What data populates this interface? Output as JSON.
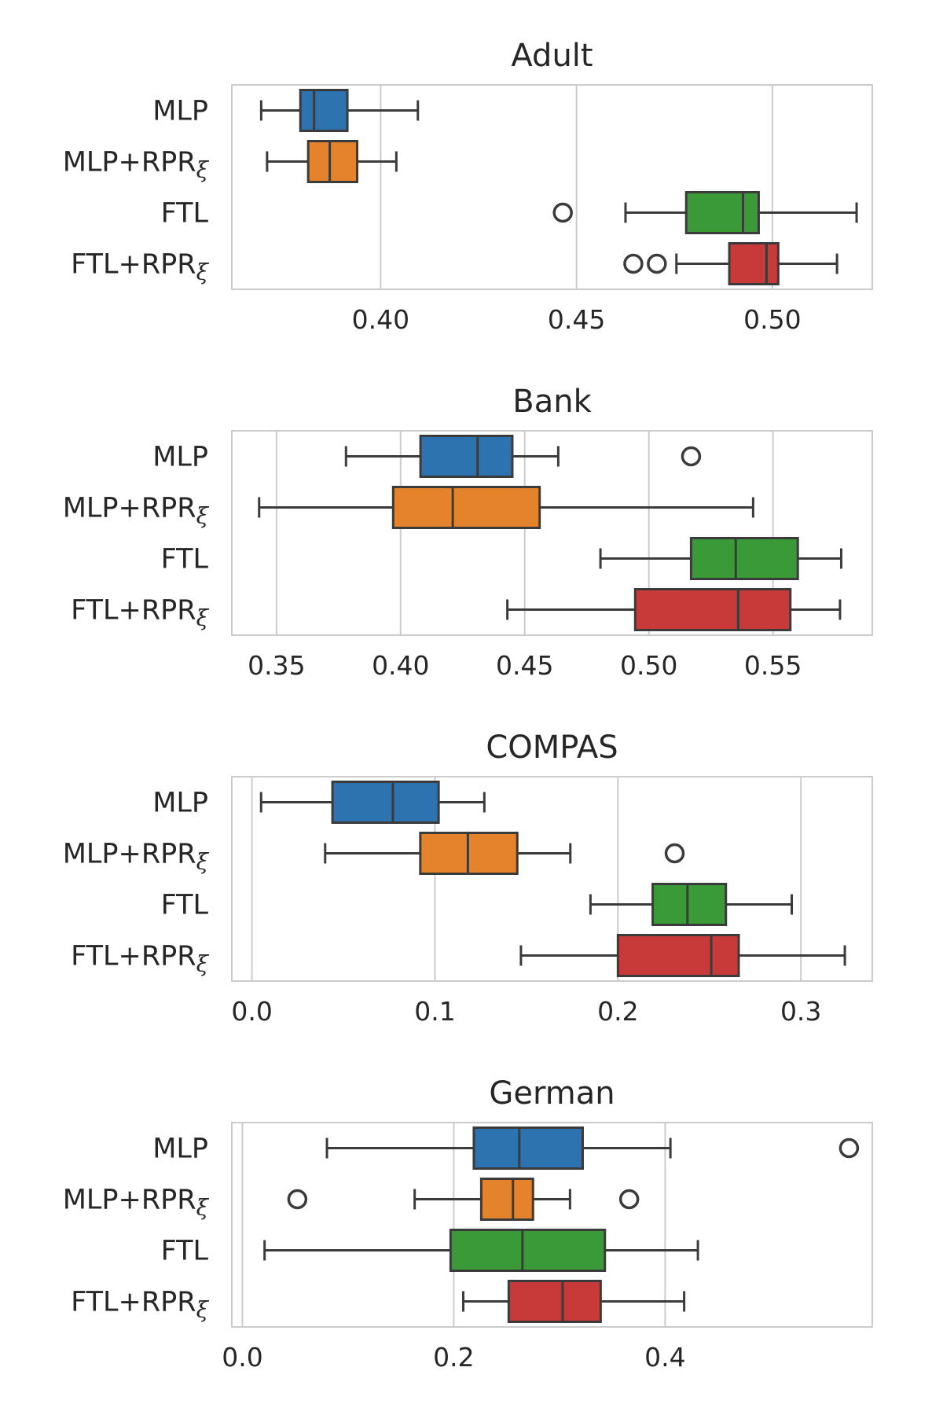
{
  "chart_data": [
    {
      "type": "box",
      "title": "Adult",
      "xlim": [
        0.362,
        0.5255
      ],
      "xticks": [
        0.4,
        0.45,
        0.5
      ],
      "xtick_labels": [
        "0.40",
        "0.45",
        "0.50"
      ],
      "grid": true,
      "series": [
        {
          "label_base": "MLP",
          "label_sub": "",
          "color": "#2c73b0",
          "min": 0.3695,
          "q1": 0.3795,
          "median": 0.383,
          "q3": 0.3915,
          "max": 0.4095,
          "outliers": []
        },
        {
          "label_base": "MLP+RPR",
          "label_sub": "ξ",
          "color": "#e5822c",
          "min": 0.371,
          "q1": 0.3815,
          "median": 0.387,
          "q3": 0.394,
          "max": 0.404,
          "outliers": []
        },
        {
          "label_base": "FTL",
          "label_sub": "",
          "color": "#3a9a37",
          "min": 0.4625,
          "q1": 0.478,
          "median": 0.4925,
          "q3": 0.4965,
          "max": 0.5215,
          "outliers": [
            0.4465
          ]
        },
        {
          "label_base": "FTL+RPR",
          "label_sub": "ξ",
          "color": "#c8393a",
          "min": 0.4755,
          "q1": 0.489,
          "median": 0.4985,
          "q3": 0.5015,
          "max": 0.5165,
          "outliers": [
            0.4645,
            0.4705
          ]
        }
      ]
    },
    {
      "type": "box",
      "title": "Bank",
      "xlim": [
        0.332,
        0.59
      ],
      "xticks": [
        0.35,
        0.4,
        0.45,
        0.5,
        0.55
      ],
      "xtick_labels": [
        "0.35",
        "0.40",
        "0.45",
        "0.50",
        "0.55"
      ],
      "grid": true,
      "series": [
        {
          "label_base": "MLP",
          "label_sub": "",
          "color": "#2c73b0",
          "min": 0.378,
          "q1": 0.408,
          "median": 0.431,
          "q3": 0.445,
          "max": 0.4635,
          "outliers": [
            0.517
          ]
        },
        {
          "label_base": "MLP+RPR",
          "label_sub": "ξ",
          "color": "#e5822c",
          "min": 0.343,
          "q1": 0.397,
          "median": 0.421,
          "q3": 0.456,
          "max": 0.542,
          "outliers": []
        },
        {
          "label_base": "FTL",
          "label_sub": "",
          "color": "#3a9a37",
          "min": 0.4805,
          "q1": 0.517,
          "median": 0.535,
          "q3": 0.56,
          "max": 0.5775,
          "outliers": []
        },
        {
          "label_base": "FTL+RPR",
          "label_sub": "ξ",
          "color": "#c8393a",
          "min": 0.443,
          "q1": 0.4945,
          "median": 0.536,
          "q3": 0.557,
          "max": 0.577,
          "outliers": []
        }
      ]
    },
    {
      "type": "box",
      "title": "COMPAS",
      "xlim": [
        -0.011,
        0.339
      ],
      "xticks": [
        0.0,
        0.1,
        0.2,
        0.3
      ],
      "xtick_labels": [
        "0.0",
        "0.1",
        "0.2",
        "0.3"
      ],
      "grid": true,
      "series": [
        {
          "label_base": "MLP",
          "label_sub": "",
          "color": "#2c73b0",
          "min": 0.005,
          "q1": 0.044,
          "median": 0.077,
          "q3": 0.102,
          "max": 0.127,
          "outliers": []
        },
        {
          "label_base": "MLP+RPR",
          "label_sub": "ξ",
          "color": "#e5822c",
          "min": 0.04,
          "q1": 0.092,
          "median": 0.118,
          "q3": 0.145,
          "max": 0.174,
          "outliers": [
            0.231
          ]
        },
        {
          "label_base": "FTL",
          "label_sub": "",
          "color": "#3a9a37",
          "min": 0.185,
          "q1": 0.219,
          "median": 0.238,
          "q3": 0.259,
          "max": 0.295,
          "outliers": []
        },
        {
          "label_base": "FTL+RPR",
          "label_sub": "ξ",
          "color": "#c8393a",
          "min": 0.147,
          "q1": 0.2,
          "median": 0.251,
          "q3": 0.266,
          "max": 0.324,
          "outliers": []
        }
      ]
    },
    {
      "type": "box",
      "title": "German",
      "xlim": [
        -0.01,
        0.596
      ],
      "xticks": [
        0.0,
        0.2,
        0.4
      ],
      "xtick_labels": [
        "0.0",
        "0.2",
        "0.4"
      ],
      "grid": true,
      "series": [
        {
          "label_base": "MLP",
          "label_sub": "",
          "color": "#2c73b0",
          "min": 0.08,
          "q1": 0.219,
          "median": 0.262,
          "q3": 0.322,
          "max": 0.405,
          "outliers": [
            0.574
          ]
        },
        {
          "label_base": "MLP+RPR",
          "label_sub": "ξ",
          "color": "#e5822c",
          "min": 0.163,
          "q1": 0.226,
          "median": 0.256,
          "q3": 0.275,
          "max": 0.31,
          "outliers": [
            0.052,
            0.366
          ]
        },
        {
          "label_base": "FTL",
          "label_sub": "",
          "color": "#3a9a37",
          "min": 0.021,
          "q1": 0.197,
          "median": 0.265,
          "q3": 0.343,
          "max": 0.431,
          "outliers": []
        },
        {
          "label_base": "FTL+RPR",
          "label_sub": "ξ",
          "color": "#c8393a",
          "min": 0.209,
          "q1": 0.252,
          "median": 0.303,
          "q3": 0.339,
          "max": 0.418,
          "outliers": []
        }
      ]
    }
  ]
}
